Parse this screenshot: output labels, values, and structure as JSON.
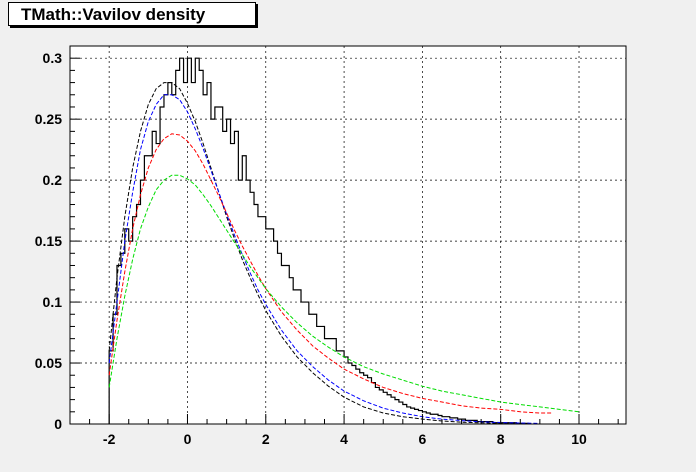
{
  "chart_data": {
    "type": "line",
    "title": "TMath::Vavilov density",
    "xlabel": "",
    "ylabel": "",
    "xlim": [
      -3,
      11.2
    ],
    "ylim": [
      0,
      0.31
    ],
    "grid": true,
    "xticks": [
      -2,
      0,
      2,
      4,
      6,
      8,
      10
    ],
    "xtick_labels": [
      "-2",
      "0",
      "2",
      "4",
      "6",
      "8",
      "10"
    ],
    "yticks": [
      0,
      0.05,
      0.1,
      0.15,
      0.2,
      0.25,
      0.3
    ],
    "ytick_labels": [
      "0",
      "0.05",
      "0.1",
      "0.15",
      "0.2",
      "0.25",
      "0.3"
    ],
    "histogram": {
      "bin_width": 0.1,
      "x_start": -2.0,
      "values": [
        0.06,
        0.09,
        0.13,
        0.14,
        0.16,
        0.15,
        0.17,
        0.18,
        0.2,
        0.22,
        0.22,
        0.24,
        0.23,
        0.26,
        0.27,
        0.28,
        0.27,
        0.29,
        0.3,
        0.28,
        0.3,
        0.28,
        0.3,
        0.29,
        0.27,
        0.28,
        0.25,
        0.26,
        0.26,
        0.24,
        0.25,
        0.23,
        0.24,
        0.2,
        0.22,
        0.2,
        0.19,
        0.18,
        0.17,
        0.17,
        0.16,
        0.16,
        0.15,
        0.14,
        0.13,
        0.13,
        0.12,
        0.11,
        0.11,
        0.1,
        0.1,
        0.09,
        0.09,
        0.08,
        0.08,
        0.07,
        0.07,
        0.07,
        0.06,
        0.06,
        0.055,
        0.05,
        0.048,
        0.045,
        0.042,
        0.04,
        0.038,
        0.034,
        0.03,
        0.028,
        0.026,
        0.024,
        0.022,
        0.02,
        0.018,
        0.016,
        0.014,
        0.013,
        0.012,
        0.011,
        0.01,
        0.009,
        0.008,
        0.008,
        0.007,
        0.006,
        0.006,
        0.005,
        0.005,
        0.004,
        0.004,
        0.003,
        0.003,
        0.003,
        0.002,
        0.002,
        0.002,
        0.002,
        0.001,
        0.001,
        0.001,
        0.001,
        0.001,
        0.001,
        0.0005,
        0.0005,
        0.0005
      ],
      "color": "#000000"
    },
    "series": [
      {
        "color": "#000000",
        "style": "dashed",
        "x": [
          -2,
          -1.8,
          -1.6,
          -1.4,
          -1.2,
          -1.0,
          -0.8,
          -0.6,
          -0.4,
          -0.2,
          0,
          0.2,
          0.4,
          0.6,
          0.8,
          1.0,
          1.2,
          1.4,
          1.6,
          1.8,
          2.0,
          2.4,
          2.8,
          3.2,
          3.6,
          4.0,
          4.5,
          5.0,
          5.5,
          6.0,
          6.5,
          7.0,
          7.5,
          8.0,
          8.5
        ],
        "y": [
          0.06,
          0.12,
          0.17,
          0.21,
          0.24,
          0.262,
          0.275,
          0.28,
          0.28,
          0.275,
          0.263,
          0.248,
          0.23,
          0.21,
          0.19,
          0.17,
          0.152,
          0.135,
          0.12,
          0.106,
          0.093,
          0.072,
          0.055,
          0.042,
          0.031,
          0.022,
          0.014,
          0.009,
          0.006,
          0.004,
          0.0025,
          0.0015,
          0.001,
          0.0006,
          0.0003
        ]
      },
      {
        "color": "#0000ff",
        "style": "dashed",
        "x": [
          -2,
          -1.8,
          -1.6,
          -1.4,
          -1.2,
          -1.0,
          -0.8,
          -0.6,
          -0.4,
          -0.2,
          0,
          0.2,
          0.4,
          0.6,
          0.8,
          1.0,
          1.2,
          1.4,
          1.6,
          1.8,
          2.0,
          2.4,
          2.8,
          3.2,
          3.6,
          4.0,
          4.5,
          5.0,
          5.5,
          6.0,
          6.5,
          7.0,
          7.5,
          8.0,
          8.5,
          9.0
        ],
        "y": [
          0.05,
          0.1,
          0.15,
          0.19,
          0.225,
          0.248,
          0.262,
          0.27,
          0.27,
          0.266,
          0.256,
          0.242,
          0.226,
          0.208,
          0.19,
          0.172,
          0.155,
          0.139,
          0.124,
          0.11,
          0.098,
          0.077,
          0.06,
          0.047,
          0.036,
          0.027,
          0.019,
          0.013,
          0.009,
          0.006,
          0.004,
          0.0028,
          0.0018,
          0.0012,
          0.0008,
          0.0005
        ]
      },
      {
        "color": "#ff0000",
        "style": "dashed",
        "x": [
          -2,
          -1.8,
          -1.6,
          -1.4,
          -1.2,
          -1.0,
          -0.8,
          -0.6,
          -0.4,
          -0.2,
          0,
          0.2,
          0.4,
          0.6,
          0.8,
          1.0,
          1.2,
          1.4,
          1.6,
          1.8,
          2.0,
          2.4,
          2.8,
          3.2,
          3.6,
          4.0,
          4.5,
          5.0,
          5.5,
          6.0,
          6.5,
          7.0,
          7.5,
          8.0,
          8.5,
          9.0,
          9.3
        ],
        "y": [
          0.04,
          0.085,
          0.125,
          0.16,
          0.188,
          0.21,
          0.225,
          0.234,
          0.238,
          0.237,
          0.232,
          0.224,
          0.213,
          0.2,
          0.187,
          0.173,
          0.159,
          0.146,
          0.134,
          0.122,
          0.111,
          0.092,
          0.077,
          0.064,
          0.054,
          0.045,
          0.037,
          0.03,
          0.025,
          0.021,
          0.018,
          0.015,
          0.013,
          0.012,
          0.01,
          0.009,
          0.009
        ]
      },
      {
        "color": "#00dd00",
        "style": "dashed",
        "x": [
          -2,
          -1.8,
          -1.6,
          -1.4,
          -1.2,
          -1.0,
          -0.8,
          -0.6,
          -0.4,
          -0.2,
          0,
          0.2,
          0.4,
          0.6,
          0.8,
          1.0,
          1.2,
          1.4,
          1.6,
          1.8,
          2.0,
          2.4,
          2.8,
          3.2,
          3.6,
          4.0,
          4.5,
          5.0,
          5.5,
          6.0,
          6.5,
          7.0,
          7.5,
          8.0,
          8.5,
          9.0,
          9.5,
          10.0
        ],
        "y": [
          0.03,
          0.07,
          0.105,
          0.135,
          0.16,
          0.178,
          0.192,
          0.2,
          0.204,
          0.204,
          0.201,
          0.196,
          0.188,
          0.179,
          0.169,
          0.159,
          0.149,
          0.139,
          0.129,
          0.12,
          0.111,
          0.096,
          0.083,
          0.072,
          0.063,
          0.055,
          0.047,
          0.041,
          0.036,
          0.031,
          0.027,
          0.024,
          0.021,
          0.018,
          0.016,
          0.014,
          0.012,
          0.01
        ]
      }
    ]
  }
}
